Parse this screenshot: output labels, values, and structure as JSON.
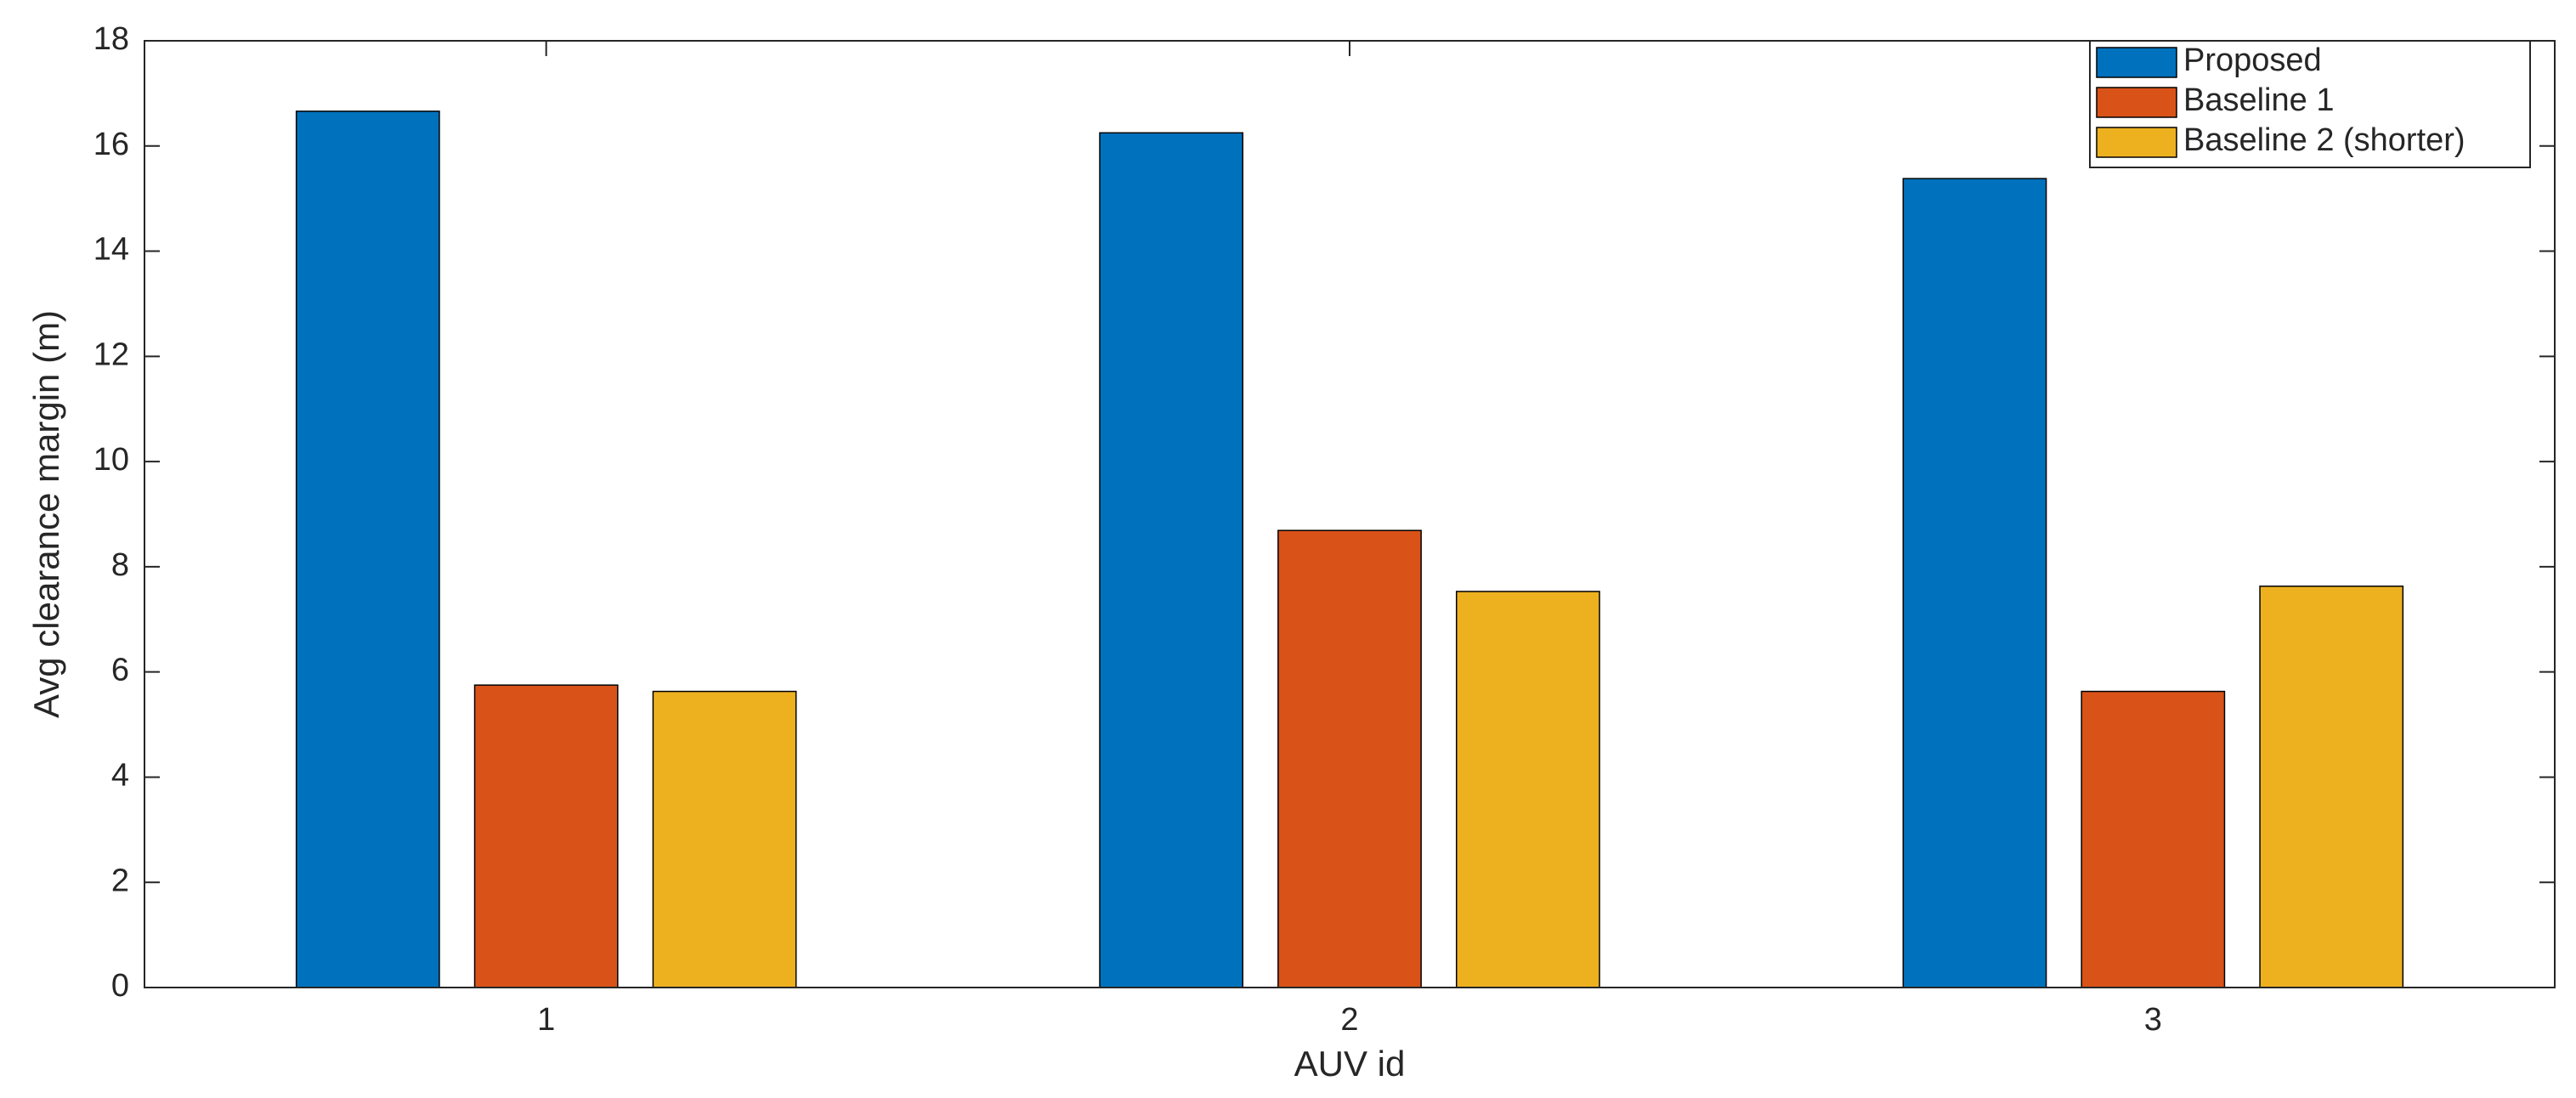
{
  "chart_data": {
    "type": "bar",
    "x_label": "AUV id",
    "y_label": "Avg clearance margin (m)",
    "categories": [
      "1",
      "2",
      "3"
    ],
    "series": [
      {
        "name": "Proposed",
        "color": "#0072bd",
        "values": [
          16.66,
          16.25,
          15.38
        ]
      },
      {
        "name": "Baseline 1",
        "color": "#d95319",
        "values": [
          5.75,
          8.69,
          5.63
        ]
      },
      {
        "name": "Baseline 2 (shorter)",
        "color": "#edb120",
        "values": [
          5.63,
          7.53,
          7.63
        ]
      }
    ],
    "ylim": [
      0,
      18
    ],
    "yticks": [
      0,
      2,
      4,
      6,
      8,
      10,
      12,
      14,
      16,
      18
    ],
    "grid": false,
    "legend": "upper right"
  }
}
